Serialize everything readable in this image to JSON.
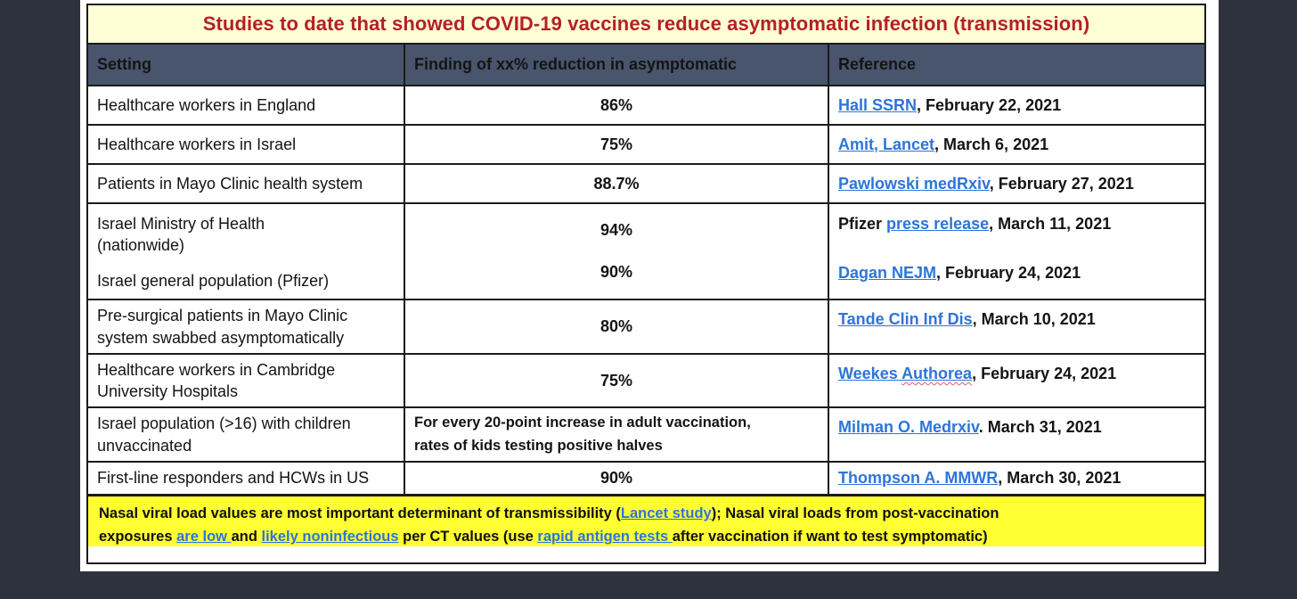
{
  "colors": {
    "background": "#2D323D",
    "slide_bg": "#FFFFFF",
    "title_bg": "#FFFFD6",
    "title_text": "#B32125",
    "header_bg": "#48556C",
    "header_text": "#F2F2F0",
    "link_blue": "#2E74D8",
    "note_bg": "#FFFF33",
    "border": "#1B1B1B"
  },
  "title": "Studies to date that showed COVID-19 vaccines reduce asymptomatic infection (transmission)",
  "table": {
    "headers": [
      "Setting",
      "Finding of xx% reduction in asymptomatic",
      "Reference"
    ],
    "rows": [
      {
        "setting": "Healthcare workers in England",
        "finding": "86%",
        "ref_prefix": "",
        "ref_link": "Hall SSRN",
        "ref_suffix": ", February 22, 2021"
      },
      {
        "setting": "Healthcare workers in Israel",
        "finding": "75%",
        "ref_prefix": "",
        "ref_link": "Amit, Lancet",
        "ref_suffix": ", March 6, 2021"
      },
      {
        "setting": "Patients in Mayo Clinic health system",
        "finding": "88.7%",
        "ref_prefix": "",
        "ref_link": "Pawlowski medRxiv",
        "ref_suffix": ", February 27, 2021"
      },
      {
        "merged": true,
        "entries": [
          {
            "setting": "Israel Ministry of Health\n(nationwide)",
            "finding": "94%",
            "ref_prefix": "Pfizer ",
            "ref_link": "press release",
            "ref_suffix": ", March 11, 2021"
          },
          {
            "setting": "Israel general population (Pfizer)",
            "finding": "90%",
            "ref_prefix": "",
            "ref_link": "Dagan NEJM",
            "ref_suffix": ", February 24, 2021"
          }
        ]
      },
      {
        "setting": "Pre-surgical patients in Mayo Clinic\nsystem swabbed asymptomatically",
        "finding": "80%",
        "ref_prefix": "",
        "ref_link": "Tande Clin Inf Dis",
        "ref_suffix": ", March 10, 2021"
      },
      {
        "setting": "Healthcare workers in Cambridge\nUniversity Hospitals",
        "finding": "75%",
        "ref_prefix": "",
        "ref_link_part1": "Weekes ",
        "ref_link_part2": "Authorea",
        "ref_suffix": ", February 24, 2021"
      },
      {
        "setting": "Israel population (>16) with children\nunvaccinated",
        "finding_text": "For every 20-point increase in adult vaccination,\nrates of kids testing positive halves",
        "ref_prefix": "",
        "ref_link": "Milman O. Medrxiv",
        "ref_suffix": ". March 31, 2021"
      },
      {
        "setting": "First-line responders and HCWs in US",
        "finding": "90%",
        "ref_prefix": "",
        "ref_link": "Thompson A. MMWR",
        "ref_suffix": ", March 30, 2021"
      }
    ]
  },
  "note": {
    "segments": [
      {
        "text": "Nasal viral load values are most important determinant of transmissibility ("
      },
      {
        "link": "Lancet study"
      },
      {
        "text": "); Nasal viral loads from post-vaccination\nexposures "
      },
      {
        "link": "are low "
      },
      {
        "text": "and "
      },
      {
        "link": "likely noninfectious"
      },
      {
        "text": " per CT values (use "
      },
      {
        "link": "rapid antigen tests "
      },
      {
        "text": "after vaccination if want to test symptomatic)"
      }
    ]
  }
}
